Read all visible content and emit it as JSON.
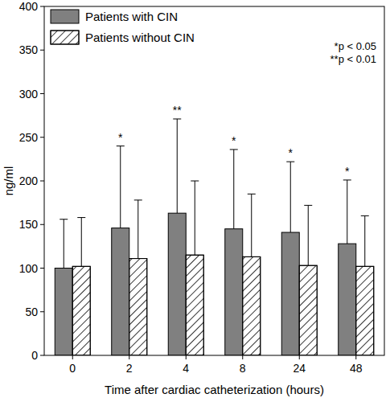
{
  "chart_data": {
    "type": "bar",
    "x_label": "Time after cardiac catheterization (hours)",
    "y_label": "ng/ml",
    "categories": [
      "0",
      "2",
      "4",
      "8",
      "24",
      "48"
    ],
    "series": [
      {
        "name": "Patients with CIN",
        "color": "#808080",
        "values": [
          100,
          146,
          163,
          145,
          141,
          128
        ],
        "errors": [
          56,
          94,
          108,
          91,
          81,
          73
        ]
      },
      {
        "name": "Patients without CIN",
        "color": "#ffffff",
        "values": [
          102,
          111,
          115,
          113,
          103,
          102
        ],
        "errors": [
          56,
          67,
          85,
          72,
          69,
          58
        ]
      }
    ],
    "significance": [
      null,
      "*",
      "**",
      "*",
      "*",
      "*"
    ],
    "annotations": [
      "*p < 0.05",
      "**p < 0.01"
    ],
    "ylim": [
      0,
      400
    ],
    "yticks": [
      0,
      50,
      100,
      150,
      200,
      250,
      300,
      350,
      400
    ],
    "legend": "upper left",
    "grid": false
  }
}
